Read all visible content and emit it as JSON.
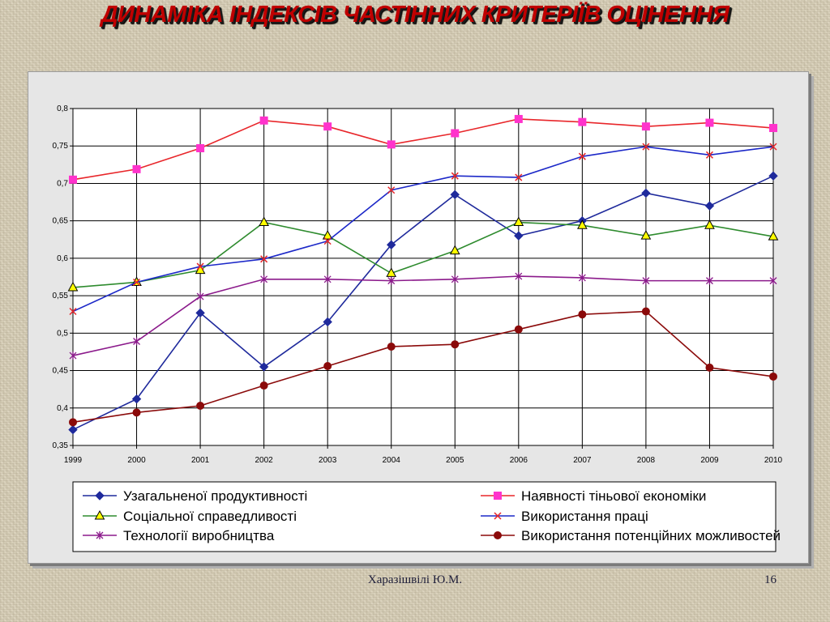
{
  "slide": {
    "title": "ДИНАМІКА ІНДЕКСІВ ЧАСТІННИХ КРИТЕРІЇВ ОЦІНЕННЯ",
    "author": "Харазішвілі Ю.М.",
    "page_number": "16"
  },
  "chart_data": {
    "type": "line",
    "title": "",
    "xlabel": "",
    "ylabel": "",
    "x": [
      "1999",
      "2000",
      "2001",
      "2002",
      "2003",
      "2004",
      "2005",
      "2006",
      "2007",
      "2008",
      "2009",
      "2010"
    ],
    "ylim": [
      0.35,
      0.8
    ],
    "yticks": [
      0.35,
      0.4,
      0.45,
      0.5,
      0.55,
      0.6,
      0.65,
      0.7,
      0.75,
      0.8
    ],
    "ytick_labels": [
      "0,35",
      "0,4",
      "0,45",
      "0,5",
      "0,55",
      "0,6",
      "0,65",
      "0,7",
      "0,75",
      "0,8"
    ],
    "grid": true,
    "legend_position": "bottom",
    "series": [
      {
        "name": "Узагальненої продуктивності",
        "color": "#1f2a9c",
        "marker": "diamond",
        "values": [
          0.371,
          0.412,
          0.527,
          0.455,
          0.515,
          0.618,
          0.685,
          0.63,
          0.65,
          0.687,
          0.67,
          0.71
        ]
      },
      {
        "name": "Наявності тіньової економіки",
        "color": "#e8262a",
        "marker": "square",
        "marker_color": "#ff33cc",
        "values": [
          0.705,
          0.719,
          0.747,
          0.784,
          0.776,
          0.752,
          0.767,
          0.786,
          0.782,
          0.776,
          0.781,
          0.774
        ]
      },
      {
        "name": "Соціальної справедливості",
        "color": "#2e8b2e",
        "marker": "triangle",
        "marker_color": "#ffff00",
        "values": [
          0.561,
          0.568,
          0.584,
          0.648,
          0.63,
          0.58,
          0.61,
          0.648,
          0.644,
          0.63,
          0.644,
          0.629
        ]
      },
      {
        "name": "Використання праці",
        "color": "#1c28c8",
        "marker": "x",
        "marker_color": "#e8262a",
        "values": [
          0.529,
          0.568,
          0.589,
          0.599,
          0.623,
          0.691,
          0.71,
          0.708,
          0.736,
          0.749,
          0.738,
          0.749
        ]
      },
      {
        "name": "Технології виробництва",
        "color": "#8b1a8b",
        "marker": "star",
        "values": [
          0.47,
          0.489,
          0.549,
          0.572,
          0.572,
          0.57,
          0.572,
          0.576,
          0.574,
          0.57,
          0.57,
          0.57
        ]
      },
      {
        "name": "Використання потенційних можливостей",
        "color": "#8b0a0a",
        "marker": "circle",
        "values": [
          0.381,
          0.394,
          0.403,
          0.43,
          0.456,
          0.482,
          0.485,
          0.505,
          0.525,
          0.529,
          0.454,
          0.442
        ]
      }
    ]
  }
}
